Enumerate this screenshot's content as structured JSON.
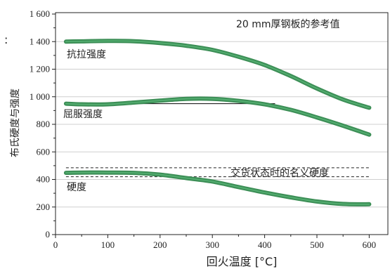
{
  "page": {
    "stray_mark": ":"
  },
  "chart_data": {
    "type": "line",
    "title": "20 mm厚钢板的参考值",
    "xlabel": "回火温度 [°C]",
    "ylabel": "布氏硬度与强度",
    "xlim": [
      0,
      620
    ],
    "ylim": [
      0,
      1600
    ],
    "xticks": [
      0,
      100,
      200,
      300,
      400,
      500,
      600
    ],
    "xtick_labels": [
      "0",
      "100",
      "200",
      "300",
      "400",
      "500",
      "600"
    ],
    "yticks": [
      0,
      200,
      400,
      600,
      800,
      1000,
      1200,
      1400,
      1600
    ],
    "ytick_labels": [
      "0",
      "200",
      "400",
      "600",
      "800",
      "1 000",
      "1 200",
      "1 400",
      "1 600"
    ],
    "grid": "horizontal",
    "series_color": "#3d8f57",
    "series_highlight": "#5db97a",
    "series": [
      {
        "name": "抗拉强度",
        "x": [
          20,
          50,
          100,
          150,
          200,
          250,
          300,
          350,
          400,
          450,
          500,
          550,
          600
        ],
        "y": [
          1400,
          1402,
          1405,
          1403,
          1390,
          1370,
          1340,
          1290,
          1230,
          1150,
          1060,
          980,
          920
        ]
      },
      {
        "name": "屈服强度",
        "x": [
          20,
          50,
          100,
          150,
          200,
          250,
          300,
          350,
          400,
          450,
          500,
          550,
          600
        ],
        "y": [
          950,
          945,
          945,
          958,
          972,
          985,
          985,
          970,
          945,
          905,
          850,
          790,
          725
        ]
      },
      {
        "name": "硬度",
        "x": [
          20,
          50,
          100,
          150,
          200,
          250,
          300,
          350,
          400,
          450,
          500,
          550,
          600
        ],
        "y": [
          448,
          450,
          450,
          448,
          435,
          410,
          385,
          345,
          305,
          270,
          240,
          222,
          220
        ]
      }
    ],
    "reference_lines": [
      {
        "style": "solid",
        "y": 950,
        "x": [
          20,
          420
        ]
      },
      {
        "style": "dashed",
        "y": 485,
        "x": [
          20,
          600
        ],
        "label": "交货状态时的名义硬度"
      },
      {
        "style": "dashed",
        "y": 420,
        "x": [
          20,
          600
        ]
      }
    ]
  }
}
